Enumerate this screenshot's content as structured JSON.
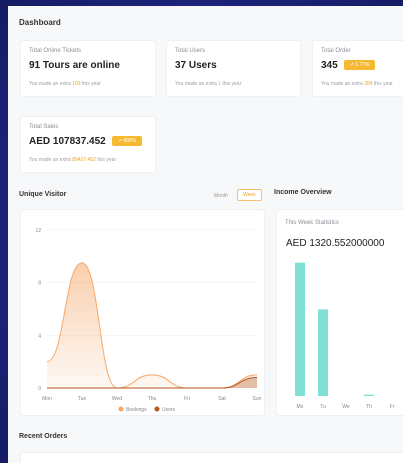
{
  "page": {
    "title": "Dashboard"
  },
  "cards": [
    {
      "label": "Total Online Tickets",
      "value": "91 Tours are online",
      "sub_prefix": "You made an extra ",
      "sub_highlight": "103",
      "sub_suffix": " this year",
      "badge": ""
    },
    {
      "label": "Total Users",
      "value": "37 Users",
      "sub_prefix": "You made an extra ",
      "sub_highlight": "1",
      "sub_suffix": " this year",
      "badge": ""
    },
    {
      "label": "Total Order",
      "value": "345",
      "sub_prefix": "You made an extra ",
      "sub_highlight": "284",
      "sub_suffix": " this year",
      "badge": "1.7?%"
    },
    {
      "label": "Total Sales",
      "value": "AED 107837.452",
      "sub_prefix": "You made an extra ",
      "sub_highlight": "89437.452",
      "sub_suffix": " this year",
      "badge": "686%"
    }
  ],
  "visitor": {
    "title": "Unique Visitor",
    "toggle_month": "Month",
    "toggle_week": "Week",
    "legend_bookings": "Bookings",
    "legend_users": "Users"
  },
  "income": {
    "title": "Income Overview",
    "subtitle": "This Week Statistics",
    "value": "AED 1320.552000000"
  },
  "recent": {
    "title": "Recent Orders"
  },
  "colors": {
    "accent": "#f0a020",
    "bookings": "#f5a86a",
    "users": "#b5541f",
    "income_bar": "#7fe0d6"
  },
  "chart_data": [
    {
      "type": "area",
      "title": "Unique Visitor",
      "categories": [
        "Mon",
        "Tue",
        "Wed",
        "Thu",
        "Fri",
        "Sat",
        "Sun"
      ],
      "yticks": [
        0,
        4,
        8,
        12
      ],
      "ylim": [
        0,
        12
      ],
      "series": [
        {
          "name": "Bookings",
          "values": [
            2,
            9.5,
            0,
            1,
            0,
            0,
            1
          ]
        },
        {
          "name": "Users",
          "values": [
            0,
            0,
            0,
            0,
            0,
            0,
            0.8
          ]
        }
      ],
      "legend": "bottom"
    },
    {
      "type": "bar",
      "title": "Income Overview",
      "categories": [
        "Mo",
        "Tu",
        "We",
        "Th",
        "Fr"
      ],
      "values": [
        10,
        6.5,
        0,
        0.1,
        0
      ],
      "ylim": [
        0,
        12
      ]
    }
  ]
}
